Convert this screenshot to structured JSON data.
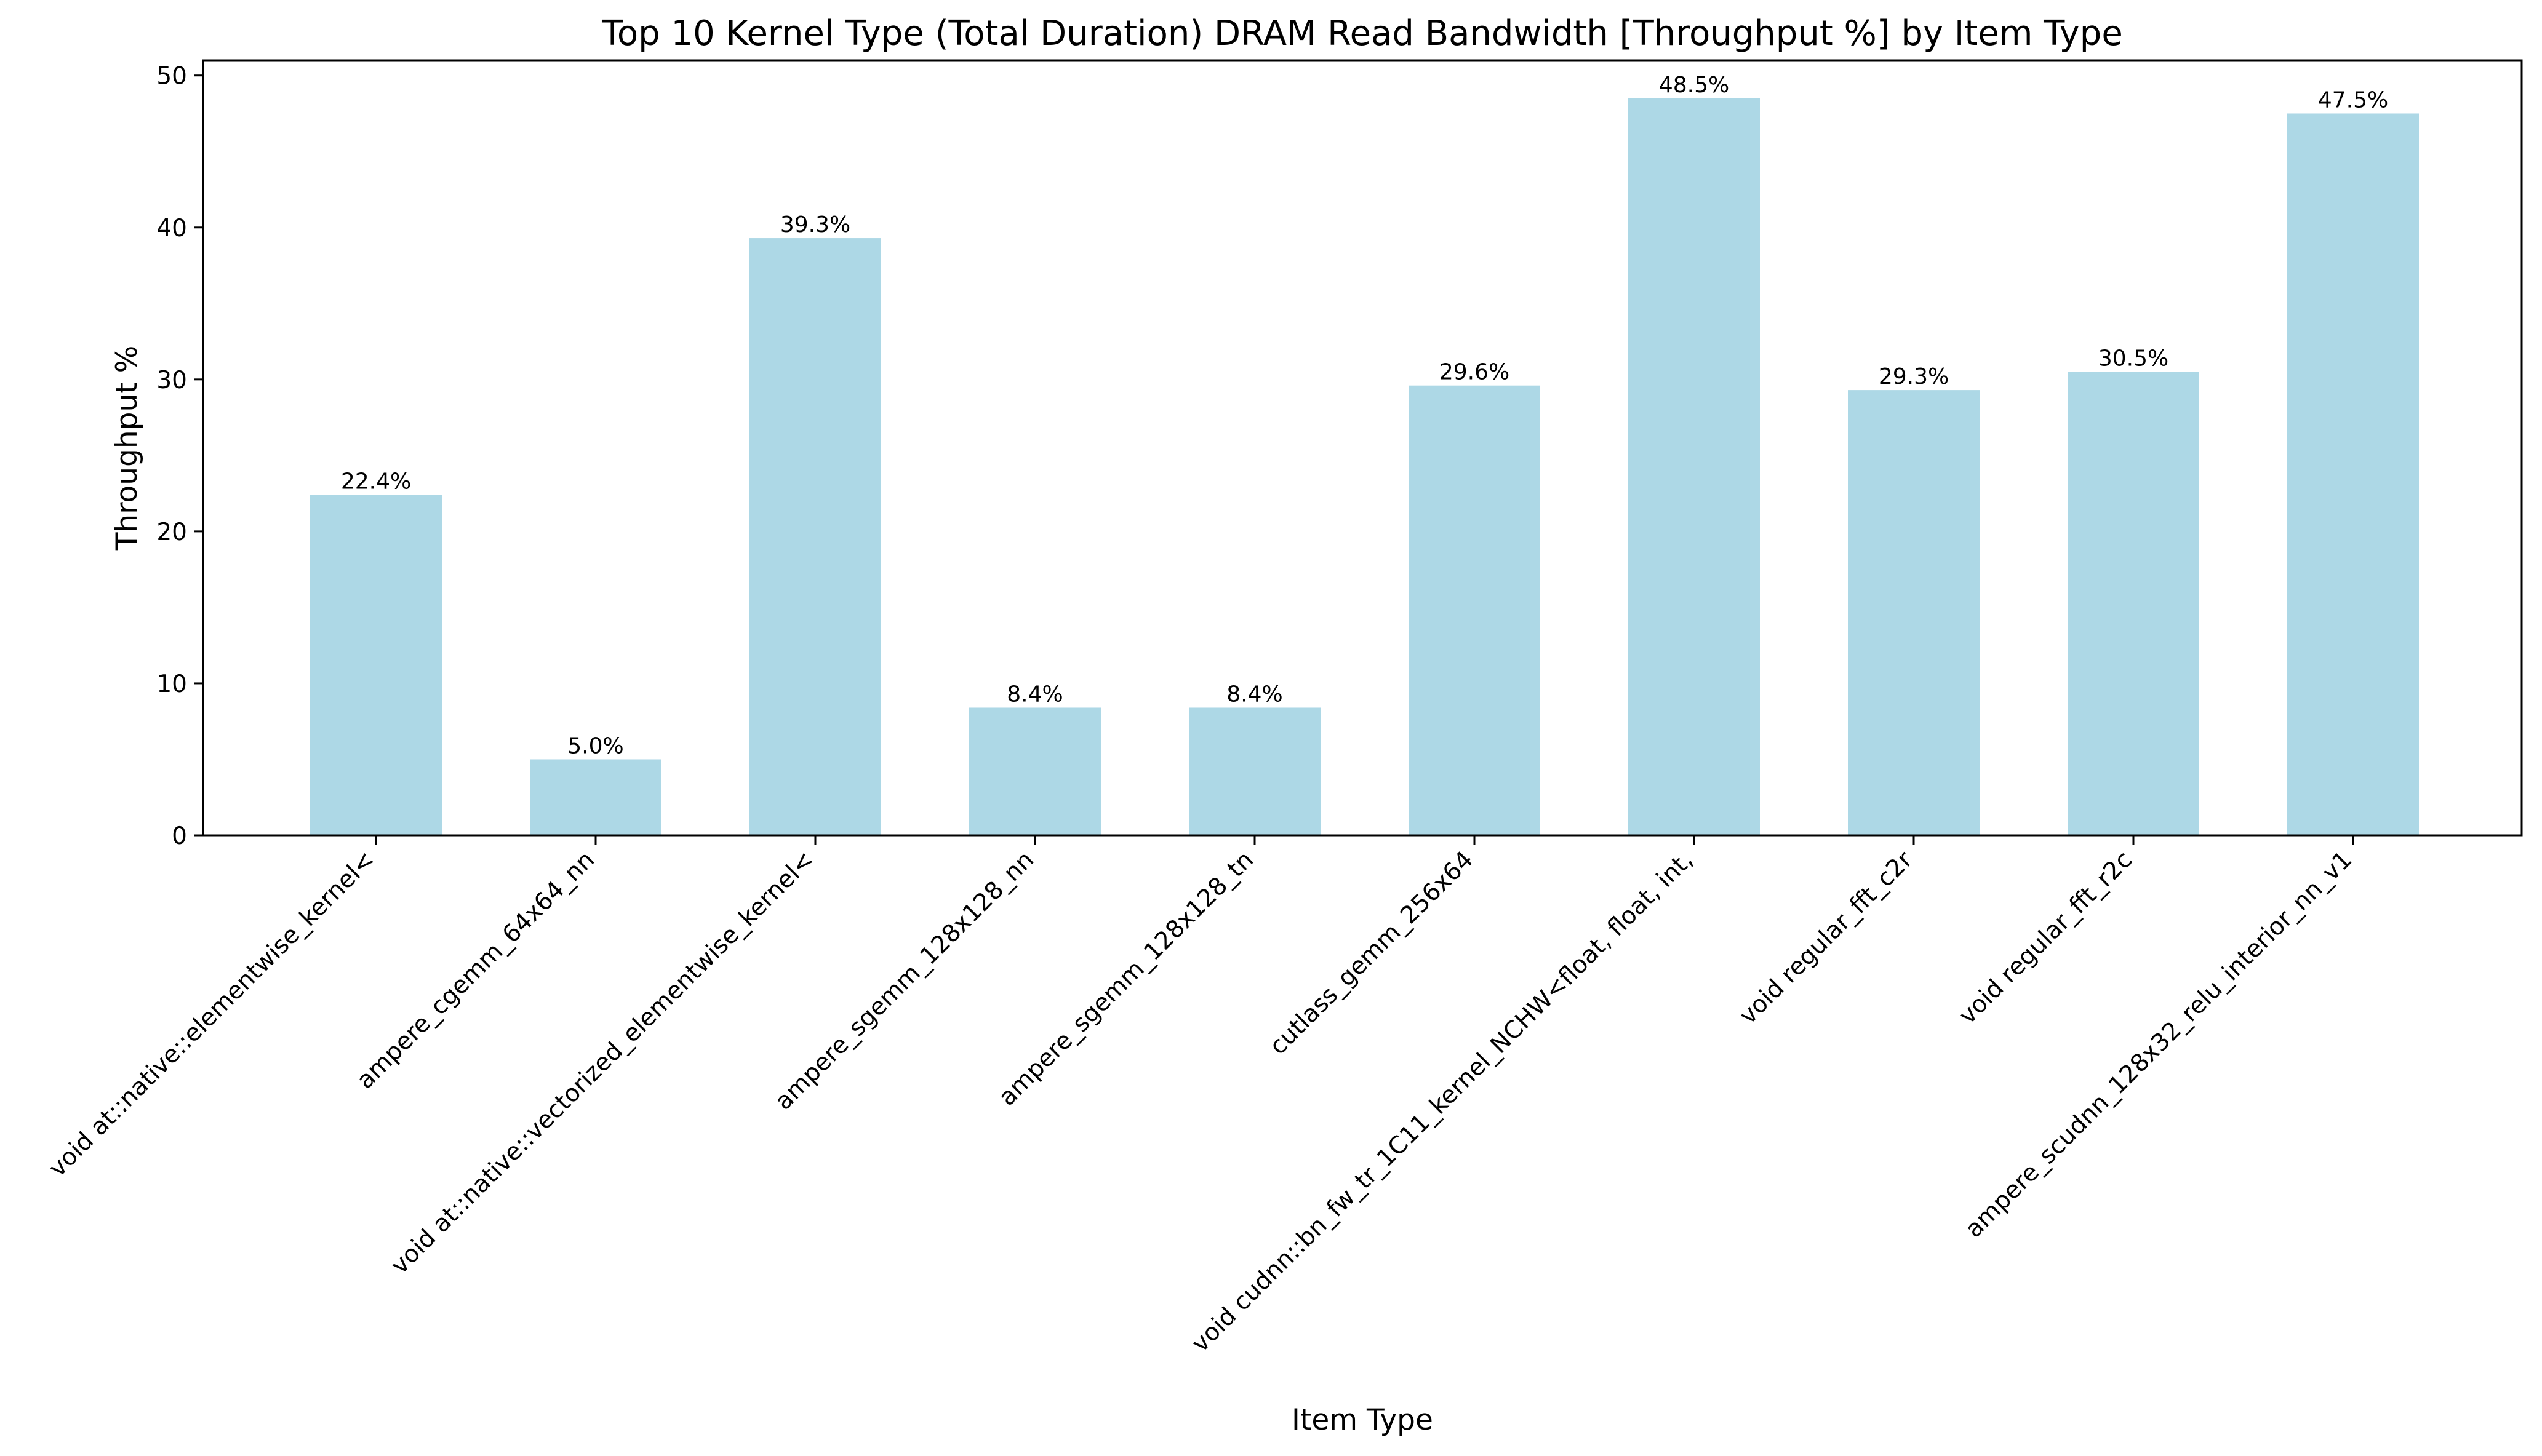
{
  "chart_data": {
    "type": "bar",
    "title": "Top 10 Kernel Type (Total Duration) DRAM Read Bandwidth [Throughput %] by Item Type",
    "xlabel": "Item Type",
    "ylabel": "Throughput %",
    "ylim": [
      0,
      51
    ],
    "yticks": [
      0,
      10,
      20,
      30,
      40,
      50
    ],
    "grid": false,
    "legend": "none",
    "bar_color": "#add8e6",
    "categories": [
      "void at::native::elementwise_kernel<",
      "ampere_cgemm_64x64_nn",
      "void at::native::vectorized_elementwise_kernel<",
      "ampere_sgemm_128x128_nn",
      "ampere_sgemm_128x128_tn",
      "cutlass_gemm_256x64",
      "void cudnn::bn_fw_tr_1C11_kernel_NCHW<float, float, int,",
      "void regular_fft_c2r",
      "void regular_fft_r2c",
      "ampere_scudnn_128x32_relu_interior_nn_v1"
    ],
    "values": [
      22.4,
      5.0,
      39.3,
      8.4,
      8.4,
      29.6,
      48.5,
      29.3,
      30.5,
      47.5
    ],
    "data_labels": [
      "22.4%",
      "5.0%",
      "39.3%",
      "8.4%",
      "8.4%",
      "29.6%",
      "48.5%",
      "29.3%",
      "30.5%",
      "47.5%"
    ]
  }
}
